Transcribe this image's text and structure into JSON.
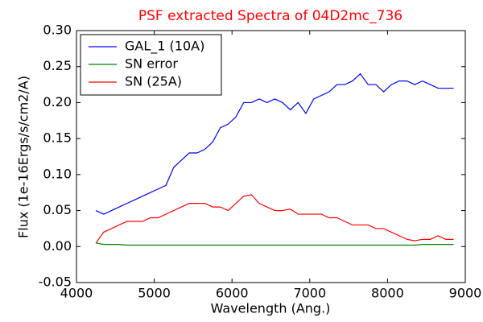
{
  "chart_data": {
    "type": "line",
    "title": "PSF extracted Spectra of 04D2mc_736",
    "xlabel": "Wavelength (Ang.)",
    "ylabel": "Flux (1e-16Ergs/s/cm2/A)",
    "x": [
      4250,
      4350,
      4450,
      4550,
      4650,
      4750,
      4850,
      4950,
      5050,
      5150,
      5250,
      5350,
      5450,
      5550,
      5650,
      5750,
      5850,
      5950,
      6050,
      6150,
      6250,
      6350,
      6450,
      6550,
      6650,
      6750,
      6850,
      6950,
      7050,
      7150,
      7250,
      7350,
      7450,
      7550,
      7650,
      7750,
      7850,
      7950,
      8050,
      8150,
      8250,
      8350,
      8450,
      8550,
      8650,
      8750,
      8850
    ],
    "series": [
      {
        "name": "GAL_1 (10A)",
        "color": "#0000ff",
        "values": [
          0.05,
          0.045,
          0.05,
          0.055,
          0.06,
          0.065,
          0.07,
          0.075,
          0.08,
          0.085,
          0.11,
          0.12,
          0.13,
          0.13,
          0.135,
          0.145,
          0.165,
          0.17,
          0.18,
          0.2,
          0.2,
          0.205,
          0.2,
          0.205,
          0.2,
          0.19,
          0.2,
          0.185,
          0.205,
          0.21,
          0.215,
          0.225,
          0.225,
          0.23,
          0.24,
          0.225,
          0.225,
          0.215,
          0.225,
          0.23,
          0.23,
          0.225,
          0.23,
          0.225,
          0.22,
          0.22,
          0.22
        ]
      },
      {
        "name": "SN error",
        "color": "#008000",
        "values": [
          0.005,
          0.003,
          0.003,
          0.003,
          0.002,
          0.002,
          0.002,
          0.002,
          0.002,
          0.002,
          0.002,
          0.002,
          0.002,
          0.002,
          0.002,
          0.002,
          0.002,
          0.002,
          0.002,
          0.002,
          0.002,
          0.002,
          0.002,
          0.002,
          0.002,
          0.002,
          0.002,
          0.002,
          0.002,
          0.002,
          0.002,
          0.002,
          0.002,
          0.002,
          0.002,
          0.002,
          0.002,
          0.002,
          0.002,
          0.002,
          0.002,
          0.002,
          0.003,
          0.003,
          0.003,
          0.003,
          0.003
        ]
      },
      {
        "name": "SN (25A)",
        "color": "#ff0000",
        "values": [
          0.005,
          0.02,
          0.025,
          0.03,
          0.035,
          0.035,
          0.035,
          0.04,
          0.04,
          0.045,
          0.05,
          0.055,
          0.06,
          0.06,
          0.06,
          0.055,
          0.055,
          0.05,
          0.06,
          0.07,
          0.072,
          0.06,
          0.055,
          0.05,
          0.05,
          0.052,
          0.045,
          0.045,
          0.045,
          0.045,
          0.04,
          0.04,
          0.035,
          0.03,
          0.03,
          0.03,
          0.025,
          0.025,
          0.02,
          0.015,
          0.01,
          0.008,
          0.01,
          0.01,
          0.015,
          0.01,
          0.01
        ]
      }
    ],
    "xlim": [
      4000,
      9000
    ],
    "xticks": [
      4000,
      5000,
      6000,
      7000,
      8000,
      9000
    ],
    "ylim": [
      -0.05,
      0.3
    ],
    "yticks": [
      {
        "value": -0.05,
        "label": "-0.05"
      },
      {
        "value": 0,
        "label": "0.00"
      },
      {
        "value": 0.05,
        "label": "0.05"
      },
      {
        "value": 0.1,
        "label": "0.10"
      },
      {
        "value": 0.15,
        "label": "0.15"
      },
      {
        "value": 0.2,
        "label": "0.20"
      },
      {
        "value": 0.25,
        "label": "0.25"
      },
      {
        "value": 0.3,
        "label": "0.30"
      }
    ],
    "legend": "upper left"
  }
}
